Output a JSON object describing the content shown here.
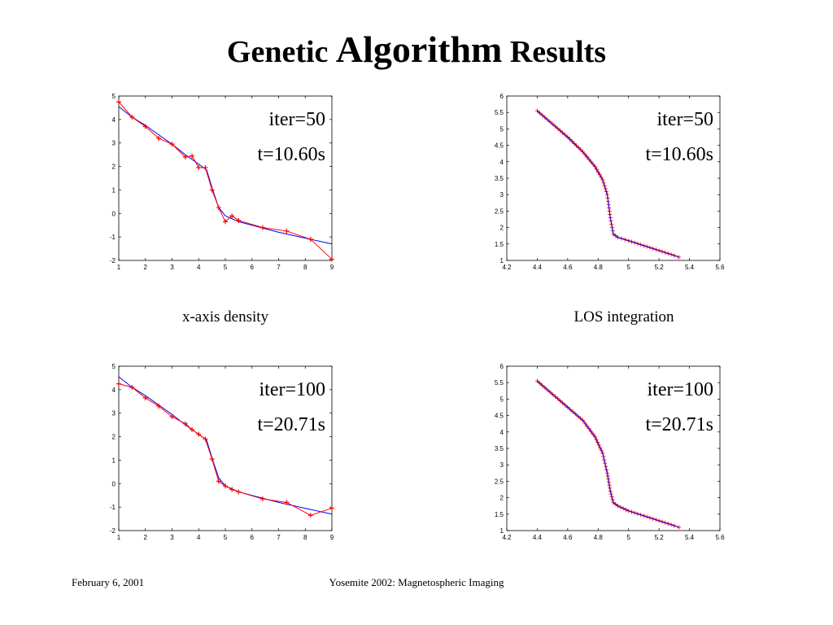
{
  "title": {
    "part1": "Genetic",
    "part2": "Algorithm",
    "part3": "Results"
  },
  "captions": {
    "left": "x-axis  density",
    "right": "LOS integration"
  },
  "footer": {
    "date": "February 6, 2001",
    "center": "Yosemite 2002: Magnetospheric Imaging"
  },
  "colors": {
    "fit_line": "#0000ff",
    "data_line": "#ff0000",
    "marker": "#ff0000"
  },
  "chart_data": [
    {
      "id": "density-iter50",
      "type": "line",
      "annotations": [
        "iter=50",
        "t=10.60s"
      ],
      "xlim": [
        1,
        9
      ],
      "ylim": [
        -2,
        5
      ],
      "xticks": [
        1,
        2,
        3,
        4,
        5,
        6,
        7,
        8,
        9
      ],
      "yticks": [
        -2,
        -1,
        0,
        1,
        2,
        3,
        4,
        5
      ],
      "series": [
        {
          "role": "fit",
          "style": "line",
          "color": "#0000ff",
          "x": [
            1.0,
            1.5,
            2.0,
            2.5,
            3.0,
            3.5,
            4.0,
            4.3,
            4.5,
            4.75,
            5.0,
            5.5,
            6.0,
            7.0,
            8.0,
            9.0
          ],
          "y": [
            4.55,
            4.1,
            3.75,
            3.35,
            2.95,
            2.5,
            2.1,
            1.85,
            1.1,
            0.25,
            -0.1,
            -0.35,
            -0.5,
            -0.8,
            -1.05,
            -1.3
          ]
        },
        {
          "role": "data",
          "style": "line+markers",
          "color": "#ff0000",
          "x": [
            1.0,
            1.5,
            2.0,
            2.5,
            3.0,
            3.5,
            3.75,
            4.0,
            4.25,
            4.5,
            4.75,
            5.0,
            5.25,
            5.5,
            6.4,
            7.3,
            8.2,
            9.0
          ],
          "y": [
            4.75,
            4.1,
            3.7,
            3.2,
            2.95,
            2.4,
            2.45,
            1.95,
            1.95,
            1.0,
            0.25,
            -0.35,
            -0.1,
            -0.3,
            -0.6,
            -0.75,
            -1.1,
            -1.95
          ]
        }
      ]
    },
    {
      "id": "los-iter50",
      "type": "line",
      "annotations": [
        "iter=50",
        "t=10.60s"
      ],
      "xlim": [
        4.2,
        5.6
      ],
      "ylim": [
        1,
        6
      ],
      "xticks": [
        4.2,
        4.4,
        4.6,
        4.8,
        5,
        5.2,
        5.4,
        5.6
      ],
      "yticks": [
        1,
        1.5,
        2,
        2.5,
        3,
        3.5,
        4,
        4.5,
        5,
        5.5,
        6
      ],
      "series": [
        {
          "role": "fit",
          "style": "line",
          "color": "#0000ff",
          "x": [
            4.4,
            4.5,
            4.6,
            4.7,
            4.78,
            4.83,
            4.86,
            4.88,
            4.9,
            4.93,
            5.0,
            5.1,
            5.2,
            5.3,
            5.33
          ],
          "y": [
            5.55,
            5.15,
            4.75,
            4.3,
            3.85,
            3.45,
            3.0,
            2.3,
            1.8,
            1.7,
            1.6,
            1.45,
            1.3,
            1.15,
            1.1
          ]
        },
        {
          "role": "data",
          "style": "markers",
          "color": "#ff0000",
          "x": [
            4.4,
            4.5,
            4.6,
            4.7,
            4.78,
            4.83,
            4.86,
            4.88,
            4.9,
            4.93,
            5.0,
            5.1,
            5.2,
            5.3,
            5.33
          ],
          "y": [
            5.55,
            5.15,
            4.75,
            4.3,
            3.85,
            3.45,
            3.0,
            2.3,
            1.8,
            1.7,
            1.6,
            1.45,
            1.3,
            1.15,
            1.1
          ]
        }
      ]
    },
    {
      "id": "density-iter100",
      "type": "line",
      "annotations": [
        "iter=100",
        "t=20.71s"
      ],
      "xlim": [
        1,
        9
      ],
      "ylim": [
        -2,
        5
      ],
      "xticks": [
        1,
        2,
        3,
        4,
        5,
        6,
        7,
        8,
        9
      ],
      "yticks": [
        -2,
        -1,
        0,
        1,
        2,
        3,
        4,
        5
      ],
      "series": [
        {
          "role": "fit",
          "style": "line",
          "color": "#0000ff",
          "x": [
            1.0,
            1.5,
            2.0,
            2.5,
            3.0,
            3.5,
            4.0,
            4.3,
            4.5,
            4.75,
            5.0,
            5.5,
            6.0,
            7.0,
            8.0,
            9.0
          ],
          "y": [
            4.55,
            4.1,
            3.75,
            3.35,
            2.95,
            2.5,
            2.1,
            1.85,
            1.1,
            0.25,
            -0.1,
            -0.35,
            -0.5,
            -0.8,
            -1.05,
            -1.3
          ]
        },
        {
          "role": "data",
          "style": "line+markers",
          "color": "#ff0000",
          "x": [
            1.0,
            1.5,
            2.0,
            2.5,
            3.0,
            3.5,
            3.75,
            4.0,
            4.25,
            4.5,
            4.75,
            5.0,
            5.25,
            5.5,
            6.4,
            7.3,
            8.2,
            9.0
          ],
          "y": [
            4.25,
            4.1,
            3.65,
            3.3,
            2.85,
            2.55,
            2.3,
            2.1,
            1.9,
            1.05,
            0.1,
            -0.1,
            -0.25,
            -0.35,
            -0.65,
            -0.8,
            -1.35,
            -1.05
          ]
        }
      ]
    },
    {
      "id": "los-iter100",
      "type": "line",
      "annotations": [
        "iter=100",
        "t=20.71s"
      ],
      "xlim": [
        4.2,
        5.6
      ],
      "ylim": [
        1,
        6
      ],
      "xticks": [
        4.2,
        4.4,
        4.6,
        4.8,
        5,
        5.2,
        5.4,
        5.6
      ],
      "yticks": [
        1,
        1.5,
        2,
        2.5,
        3,
        3.5,
        4,
        4.5,
        5,
        5.5,
        6
      ],
      "series": [
        {
          "role": "fit",
          "style": "line",
          "color": "#0000ff",
          "x": [
            4.4,
            4.5,
            4.6,
            4.7,
            4.78,
            4.83,
            4.86,
            4.88,
            4.9,
            4.93,
            5.0,
            5.1,
            5.2,
            5.3,
            5.33
          ],
          "y": [
            5.55,
            5.15,
            4.75,
            4.35,
            3.85,
            3.35,
            2.75,
            2.2,
            1.85,
            1.75,
            1.6,
            1.45,
            1.3,
            1.15,
            1.1
          ]
        },
        {
          "role": "data",
          "style": "markers",
          "color": "#ff0000",
          "x": [
            4.4,
            4.5,
            4.6,
            4.7,
            4.78,
            4.83,
            4.86,
            4.88,
            4.9,
            4.93,
            5.0,
            5.1,
            5.2,
            5.3,
            5.33
          ],
          "y": [
            5.55,
            5.15,
            4.75,
            4.35,
            3.85,
            3.35,
            2.75,
            2.2,
            1.85,
            1.75,
            1.6,
            1.45,
            1.3,
            1.15,
            1.1
          ]
        }
      ]
    }
  ]
}
